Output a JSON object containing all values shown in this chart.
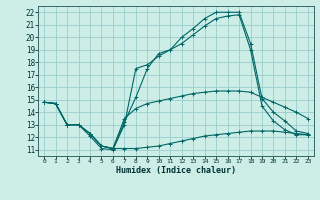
{
  "bg_color": "#cceee6",
  "grid_color": "#99cccc",
  "line_color": "#006666",
  "xlabel": "Humidex (Indice chaleur)",
  "xlim": [
    -0.5,
    23.5
  ],
  "ylim": [
    10.5,
    22.5
  ],
  "xticks": [
    0,
    1,
    2,
    3,
    4,
    5,
    6,
    7,
    8,
    9,
    10,
    11,
    12,
    13,
    14,
    15,
    16,
    17,
    18,
    19,
    20,
    21,
    22,
    23
  ],
  "yticks": [
    11,
    12,
    13,
    14,
    15,
    16,
    17,
    18,
    19,
    20,
    21,
    22
  ],
  "series": [
    [
      14.8,
      14.7,
      13.0,
      13.0,
      12.3,
      11.3,
      11.1,
      11.1,
      11.1,
      11.2,
      11.3,
      11.5,
      11.7,
      11.9,
      12.1,
      12.2,
      12.3,
      12.4,
      12.5,
      12.5,
      12.5,
      12.4,
      12.3,
      12.2
    ],
    [
      14.8,
      14.7,
      13.0,
      13.0,
      12.3,
      11.3,
      11.1,
      13.5,
      14.3,
      14.7,
      14.9,
      15.1,
      15.3,
      15.5,
      15.6,
      15.7,
      15.7,
      15.7,
      15.6,
      15.2,
      14.8,
      14.4,
      14.0,
      13.5
    ],
    [
      14.8,
      14.7,
      13.0,
      13.0,
      12.3,
      11.3,
      11.1,
      13.2,
      15.2,
      17.5,
      18.7,
      19.0,
      20.0,
      20.7,
      21.5,
      22.0,
      22.0,
      22.0,
      19.5,
      15.1,
      14.0,
      13.3,
      12.5,
      12.3
    ],
    [
      14.8,
      14.7,
      13.0,
      13.0,
      12.1,
      11.1,
      11.0,
      13.0,
      17.5,
      17.8,
      18.5,
      19.0,
      19.5,
      20.2,
      20.9,
      21.5,
      21.7,
      21.8,
      19.0,
      14.5,
      13.3,
      12.6,
      12.2,
      12.2
    ]
  ]
}
